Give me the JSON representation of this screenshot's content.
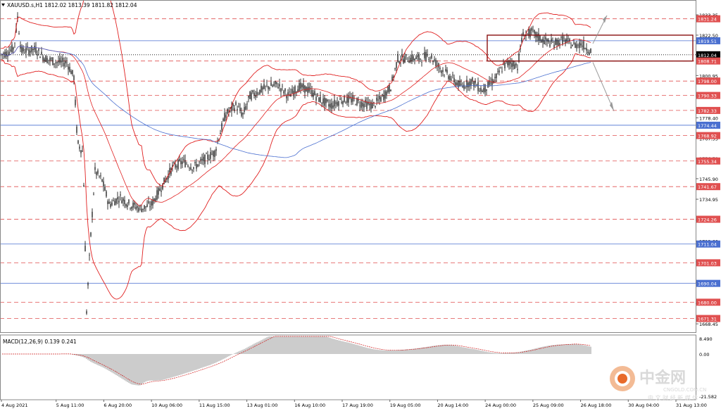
{
  "header": {
    "symbol_line": "XAUUSD.s,H1  1812.02 1813.39 1811.82 1812.04",
    "macd_label": "MACD(12,26,9) 0.139 0.241"
  },
  "chart_data": {
    "type": "line",
    "title": "",
    "series": [
      {
        "name": "XAUUSD.s,H1",
        "kind": "candlestick"
      },
      {
        "name": "MACD(12,26,9)",
        "kind": "histogram+signal"
      }
    ],
    "price_axis_labels": [
      "1833.35",
      "1822.50",
      "1800.95",
      "1790.10",
      "1778.40",
      "1767.55",
      "1756.70",
      "1745.90",
      "1734.95",
      "1723.85",
      "1712.60",
      "1701.55",
      "1690.60",
      "1679.35",
      "1668.45"
    ],
    "macd_axis_labels": [
      "8.490",
      "0.00",
      "-21.582"
    ],
    "highlighted_levels": [
      {
        "value": "1831.24",
        "color": "#e05050"
      },
      {
        "value": "1819.51",
        "color": "#4a6fd0"
      },
      {
        "value": "1812.04",
        "color": "#000000"
      },
      {
        "value": "1808.71",
        "color": "#e05050"
      },
      {
        "value": "1798.00",
        "color": "#e05050"
      },
      {
        "value": "1790.33",
        "color": "#e05050"
      },
      {
        "value": "1782.33",
        "color": "#e05050"
      },
      {
        "value": "1774.44",
        "color": "#4a6fd0"
      },
      {
        "value": "1768.92",
        "color": "#e05050"
      },
      {
        "value": "1755.34",
        "color": "#e05050"
      },
      {
        "value": "1741.67",
        "color": "#e05050"
      },
      {
        "value": "1724.26",
        "color": "#e05050"
      },
      {
        "value": "1711.04",
        "color": "#4a6fd0"
      },
      {
        "value": "1701.03",
        "color": "#e05050"
      },
      {
        "value": "1690.04",
        "color": "#4a6fd0"
      },
      {
        "value": "1680.00",
        "color": "#e05050"
      },
      {
        "value": "1671.31",
        "color": "#e05050"
      }
    ],
    "x_ticks": [
      "4 Aug 2021",
      "5 Aug 11:00",
      "6 Aug 20:00",
      "10 Aug 06:00",
      "11 Aug 15:00",
      "13 Aug 01:00",
      "16 Aug 10:00",
      "17 Aug 19:00",
      "19 Aug 05:00",
      "20 Aug 14:00",
      "24 Aug 00:00",
      "25 Aug 09:00",
      "26 Aug 18:00",
      "30 Aug 04:00",
      "31 Aug 13:00"
    ],
    "close_path": [
      [
        0,
        1812
      ],
      [
        10,
        1813
      ],
      [
        20,
        1816
      ],
      [
        25,
        1832
      ],
      [
        30,
        1814
      ],
      [
        50,
        1815
      ],
      [
        65,
        1810
      ],
      [
        80,
        1808
      ],
      [
        95,
        1808
      ],
      [
        105,
        1800
      ],
      [
        110,
        1765
      ],
      [
        118,
        1760
      ],
      [
        123,
        1675
      ],
      [
        128,
        1710
      ],
      [
        135,
        1750
      ],
      [
        145,
        1745
      ],
      [
        155,
        1732
      ],
      [
        170,
        1736
      ],
      [
        185,
        1732
      ],
      [
        200,
        1730
      ],
      [
        215,
        1732
      ],
      [
        230,
        1742
      ],
      [
        245,
        1752
      ],
      [
        260,
        1755
      ],
      [
        275,
        1752
      ],
      [
        290,
        1756
      ],
      [
        305,
        1760
      ],
      [
        320,
        1780
      ],
      [
        335,
        1785
      ],
      [
        345,
        1780
      ],
      [
        355,
        1790
      ],
      [
        365,
        1792
      ],
      [
        380,
        1795
      ],
      [
        395,
        1796
      ],
      [
        410,
        1790
      ],
      [
        425,
        1795
      ],
      [
        440,
        1793
      ],
      [
        455,
        1788
      ],
      [
        470,
        1785
      ],
      [
        485,
        1788
      ],
      [
        500,
        1788
      ],
      [
        515,
        1786
      ],
      [
        530,
        1785
      ],
      [
        545,
        1790
      ],
      [
        555,
        1795
      ],
      [
        565,
        1810
      ],
      [
        580,
        1810
      ],
      [
        595,
        1810
      ],
      [
        610,
        1812
      ],
      [
        625,
        1805
      ],
      [
        640,
        1800
      ],
      [
        655,
        1795
      ],
      [
        670,
        1798
      ],
      [
        685,
        1793
      ],
      [
        695,
        1796
      ],
      [
        705,
        1800
      ],
      [
        715,
        1806
      ],
      [
        725,
        1808
      ],
      [
        735,
        1806
      ],
      [
        742,
        1822
      ],
      [
        755,
        1824
      ],
      [
        770,
        1820
      ],
      [
        785,
        1818
      ],
      [
        800,
        1820
      ],
      [
        815,
        1817
      ],
      [
        825,
        1818
      ],
      [
        840,
        1814
      ]
    ],
    "grid": true
  },
  "watermark": {
    "name": "中金网",
    "url": "CNGOLD.COM.CN",
    "sub": "中 文 财 经 新 媒 体"
  },
  "colors": {
    "background": "#ffffff",
    "bands": "#e02020",
    "ma": "#4a6fd0",
    "candles": "#000000",
    "box": "#8a1010",
    "arrows": "#999999"
  }
}
